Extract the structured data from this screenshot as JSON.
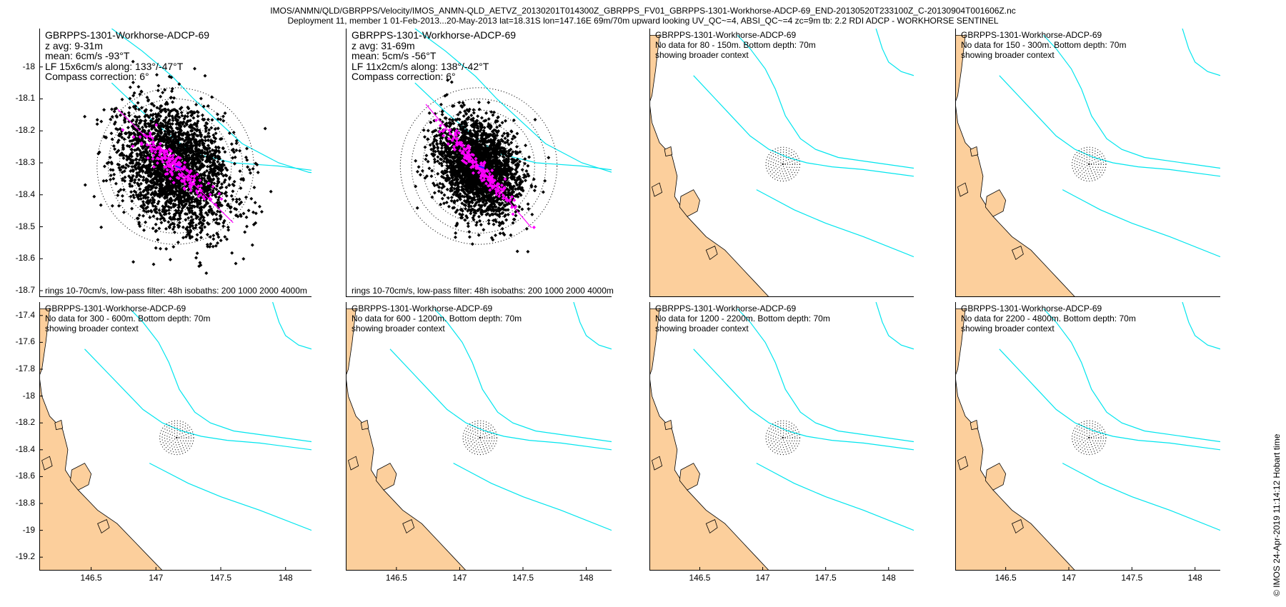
{
  "header": {
    "line1": "IMOS/ANMN/QLD/GBRPPS/Velocity/IMOS_ANMN-QLD_AETVZ_20130201T014300Z_GBRPPS_FV01_GBRPPS-1301-Workhorse-ADCP-69_END-20130520T233100Z_C-20130904T001606Z.nc",
    "line2": "Deployment 11, member 1 01-Feb-2013...20-May-2013 lat=18.31S lon=147.16E 69m/70m upward looking UV_QC~=4, ABSI_QC~=4 zc=9m tb: 2.2 RDI ADCP - WORKHORSE SENTINEL"
  },
  "credit": "© IMOS 24-Apr-2019 11:14:12 Hobart time",
  "colors": {
    "land": "#fccf9c",
    "isobath": "#00e5ee",
    "scatter": "#000000",
    "lowpass": "#ff00ff",
    "major_axis": "#ff00ff",
    "mean_vector": "#1a1aff"
  },
  "chart_data": [
    {
      "type": "scatter",
      "title": "GBRPPS-1301-Workhorse-ADCP-69",
      "info_lines": [
        "z avg: 9-31m",
        "mean: 6cm/s -93°T",
        "LF 15x6cm/s along: 133°/-47°T",
        "Compass correction: 6°"
      ],
      "footnote": "rings 10-70cm/s, low-pass filter: 48h isobaths: 200 1000 2000 4000m",
      "ylim": [
        -18.72,
        -17.88
      ],
      "xlim": [
        146.75,
        147.55
      ],
      "yticks": [
        -18,
        -18.1,
        -18.2,
        -18.3,
        -18.4,
        -18.5,
        -18.6,
        -18.7
      ],
      "xticks": [],
      "center": [
        147.16,
        -18.31
      ],
      "ring_radii_deg": [
        0.035,
        0.07,
        0.105,
        0.14,
        0.175,
        0.21,
        0.245
      ],
      "scatter_spread": [
        0.12,
        0.075
      ],
      "scatter_offset": [
        0.0,
        -0.005
      ],
      "lowpass_spread": [
        0.07,
        0.018
      ],
      "major_axis_bearing_deg": 133,
      "major_axis_halflen": 0.26
    },
    {
      "type": "scatter",
      "title": "GBRPPS-1301-Workhorse-ADCP-69",
      "info_lines": [
        "z avg: 31-69m",
        "mean: 5cm/s -56°T",
        "LF 11x2cm/s along: 138°/-42°T",
        "Compass correction: 6°"
      ],
      "footnote": "rings 10-70cm/s, low-pass filter: 48h isobaths: 200 1000 2000 4000m",
      "ylim": [
        -18.72,
        -17.88
      ],
      "xlim": [
        146.75,
        147.55
      ],
      "yticks": [],
      "xticks": [],
      "center": [
        147.16,
        -18.31
      ],
      "ring_radii_deg": [
        0.035,
        0.07,
        0.105,
        0.14,
        0.175,
        0.21,
        0.245
      ],
      "scatter_spread": [
        0.09,
        0.055
      ],
      "scatter_offset": [
        0.0,
        -0.005
      ],
      "lowpass_spread": [
        0.08,
        0.012
      ],
      "major_axis_bearing_deg": 138,
      "major_axis_halflen": 0.26
    },
    {
      "type": "map",
      "title": "GBRPPS-1301-Workhorse-ADCP-69",
      "info_lines": [
        "No data for 80 - 150m. Bottom depth: 70m",
        "showing broader context"
      ],
      "ylim": [
        -19.3,
        -17.3
      ],
      "xlim": [
        146.1,
        148.2
      ],
      "yticks": [],
      "xticks": [],
      "center": [
        147.16,
        -18.31
      ],
      "ring_radii_deg": [
        0.018,
        0.036,
        0.054,
        0.072,
        0.09,
        0.108,
        0.126
      ]
    },
    {
      "type": "map",
      "title": "GBRPPS-1301-Workhorse-ADCP-69",
      "info_lines": [
        "No data for 150 - 300m. Bottom depth: 70m",
        "showing broader context"
      ],
      "ylim": [
        -19.3,
        -17.3
      ],
      "xlim": [
        146.1,
        148.2
      ],
      "yticks": [],
      "xticks": [],
      "center": [
        147.16,
        -18.31
      ],
      "ring_radii_deg": [
        0.018,
        0.036,
        0.054,
        0.072,
        0.09,
        0.108,
        0.126
      ]
    },
    {
      "type": "map",
      "title": "GBRPPS-1301-Workhorse-ADCP-69",
      "info_lines": [
        "No data for 300 - 600m. Bottom depth: 70m",
        "showing broader context"
      ],
      "ylim": [
        -19.3,
        -17.3
      ],
      "xlim": [
        146.1,
        148.2
      ],
      "yticks": [
        -17.4,
        -17.6,
        -17.8,
        -18,
        -18.2,
        -18.4,
        -18.6,
        -18.8,
        -19,
        -19.2
      ],
      "xticks": [
        146.5,
        147,
        147.5,
        148
      ],
      "center": [
        147.16,
        -18.31
      ],
      "ring_radii_deg": [
        0.018,
        0.036,
        0.054,
        0.072,
        0.09,
        0.108,
        0.126
      ]
    },
    {
      "type": "map",
      "title": "GBRPPS-1301-Workhorse-ADCP-69",
      "info_lines": [
        "No data for 600 - 1200m. Bottom depth: 70m",
        "showing broader context"
      ],
      "ylim": [
        -19.3,
        -17.3
      ],
      "xlim": [
        146.1,
        148.2
      ],
      "yticks": [],
      "xticks": [
        146.5,
        147,
        147.5,
        148
      ],
      "center": [
        147.16,
        -18.31
      ],
      "ring_radii_deg": [
        0.018,
        0.036,
        0.054,
        0.072,
        0.09,
        0.108,
        0.126
      ]
    },
    {
      "type": "map",
      "title": "GBRPPS-1301-Workhorse-ADCP-69",
      "info_lines": [
        "No data for 1200 - 2200m. Bottom depth: 70m",
        "showing broader context"
      ],
      "ylim": [
        -19.3,
        -17.3
      ],
      "xlim": [
        146.1,
        148.2
      ],
      "yticks": [],
      "xticks": [
        146.5,
        147,
        147.5,
        148
      ],
      "center": [
        147.16,
        -18.31
      ],
      "ring_radii_deg": [
        0.018,
        0.036,
        0.054,
        0.072,
        0.09,
        0.108,
        0.126
      ]
    },
    {
      "type": "map",
      "title": "GBRPPS-1301-Workhorse-ADCP-69",
      "info_lines": [
        "No data for 2200 - 4800m. Bottom depth: 70m",
        "showing broader context"
      ],
      "ylim": [
        -19.3,
        -17.3
      ],
      "xlim": [
        146.1,
        148.2
      ],
      "yticks": [],
      "xticks": [
        146.5,
        147,
        147.5,
        148
      ],
      "center": [
        147.16,
        -18.31
      ],
      "ring_radii_deg": [
        0.018,
        0.036,
        0.054,
        0.072,
        0.09,
        0.108,
        0.126
      ]
    }
  ]
}
